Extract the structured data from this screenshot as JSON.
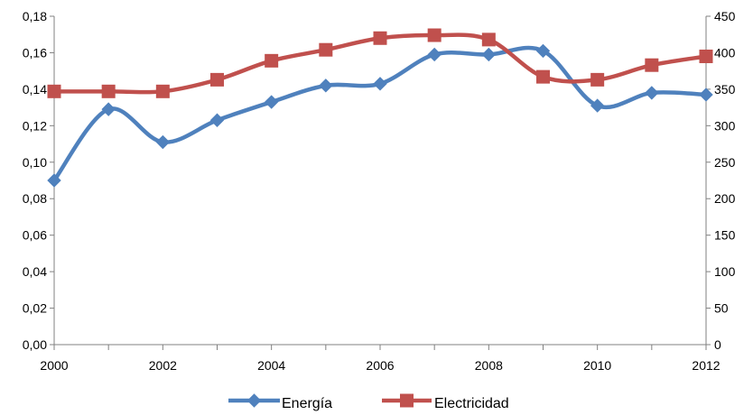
{
  "chart_data": {
    "type": "line",
    "title": "",
    "xlabel": "",
    "ylabel": "",
    "y2label": "",
    "x": [
      2000,
      2001,
      2002,
      2003,
      2004,
      2005,
      2006,
      2007,
      2008,
      2009,
      2010,
      2011,
      2012
    ],
    "xlim": [
      2000,
      2012
    ],
    "ylim": [
      0,
      0.18
    ],
    "y2lim": [
      0,
      450
    ],
    "x_ticks": [
      "2000",
      "2002",
      "2004",
      "2006",
      "2008",
      "2010",
      "2012"
    ],
    "y_ticks": [
      "0,00",
      "0,02",
      "0,04",
      "0,06",
      "0,08",
      "0,10",
      "0,12",
      "0,14",
      "0,16",
      "0,18"
    ],
    "y2_ticks": [
      "0",
      "50",
      "100",
      "150",
      "200",
      "250",
      "300",
      "350",
      "400",
      "450"
    ],
    "grid": false,
    "legend_position": "bottom",
    "series": [
      {
        "name": "Energía",
        "axis": "left",
        "color": "#4F81BD",
        "marker": "diamond",
        "smooth": true,
        "values": [
          0.09,
          0.129,
          0.111,
          0.123,
          0.133,
          0.142,
          0.143,
          0.159,
          0.159,
          0.161,
          0.131,
          0.138,
          0.137
        ]
      },
      {
        "name": "Electricidad",
        "axis": "right",
        "color": "#C0504D",
        "marker": "square",
        "smooth": true,
        "values": [
          347,
          347,
          347,
          363,
          389,
          404,
          420,
          424,
          418,
          367,
          363,
          383,
          395
        ]
      }
    ]
  }
}
